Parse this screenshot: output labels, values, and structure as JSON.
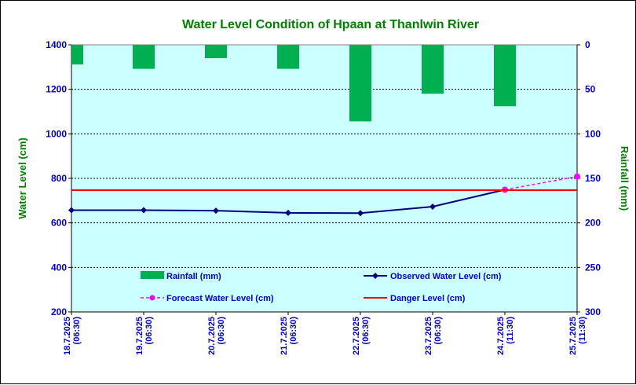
{
  "chart_data": {
    "type": "bar+line",
    "title": "Water Level Condition of Hpaan at Thanlwin River",
    "ylabel": "Water Level (cm)",
    "y2label": "Rainfall (mm)",
    "ylim": [
      200,
      1400
    ],
    "y_ticks": [
      200,
      400,
      600,
      800,
      1000,
      1200,
      1400
    ],
    "y2lim": [
      0,
      300
    ],
    "y2_reversed": true,
    "y2_ticks": [
      0,
      50,
      100,
      150,
      200,
      250,
      300
    ],
    "categories": [
      [
        "18.7.2025",
        "(06:30)"
      ],
      [
        "19.7.2025",
        "(06:30)"
      ],
      [
        "20.7.2025",
        "(06:30)"
      ],
      [
        "21.7.2025",
        "(06:30)"
      ],
      [
        "22.7.2025",
        "(06:30)"
      ],
      [
        "23.7.2025",
        "(06:30)"
      ],
      [
        "24.7.2025",
        "(11:30)"
      ],
      [
        "25.7.2025",
        "(11:30)"
      ]
    ],
    "grid": true,
    "legend_position": "lower-center",
    "series": [
      {
        "name": "Rainfall (mm)",
        "kind": "bar",
        "axis": "right",
        "color": "#00b050",
        "values": [
          22,
          27,
          15,
          27,
          null,
          55,
          69,
          null
        ]
      },
      {
        "name": "Rainfall (mm)",
        "kind": "bar",
        "axis": "right",
        "color": "#00b050",
        "legend": false,
        "offset_index": 4,
        "values": [
          null,
          null,
          null,
          null,
          86,
          null,
          null,
          null
        ]
      },
      {
        "name": "Observed Water Level (cm)",
        "kind": "line",
        "axis": "left",
        "color": "#000080",
        "marker": "diamond",
        "values": [
          657,
          657,
          655,
          645,
          644,
          673,
          749,
          null
        ]
      },
      {
        "name": "Forecast Water Level (cm)",
        "kind": "line",
        "axis": "left",
        "color": "#ff00ff",
        "marker": "circle",
        "dashed": true,
        "values": [
          null,
          null,
          null,
          null,
          null,
          null,
          749,
          808
        ]
      },
      {
        "name": "Danger Level (cm)",
        "kind": "line",
        "axis": "left",
        "color": "#ff0000",
        "values": [
          747,
          747,
          747,
          747,
          747,
          747,
          747,
          747
        ]
      }
    ],
    "colors": {
      "plot_background": "#ccffff",
      "title": "#008000",
      "axis_title": "#008000",
      "tick_label": "#0000cc"
    }
  },
  "legend": {
    "rainfall": "Rainfall (mm)",
    "observed": "Observed Water Level (cm)",
    "forecast": "Forecast Water Level (cm)",
    "danger": "Danger Level (cm)"
  }
}
